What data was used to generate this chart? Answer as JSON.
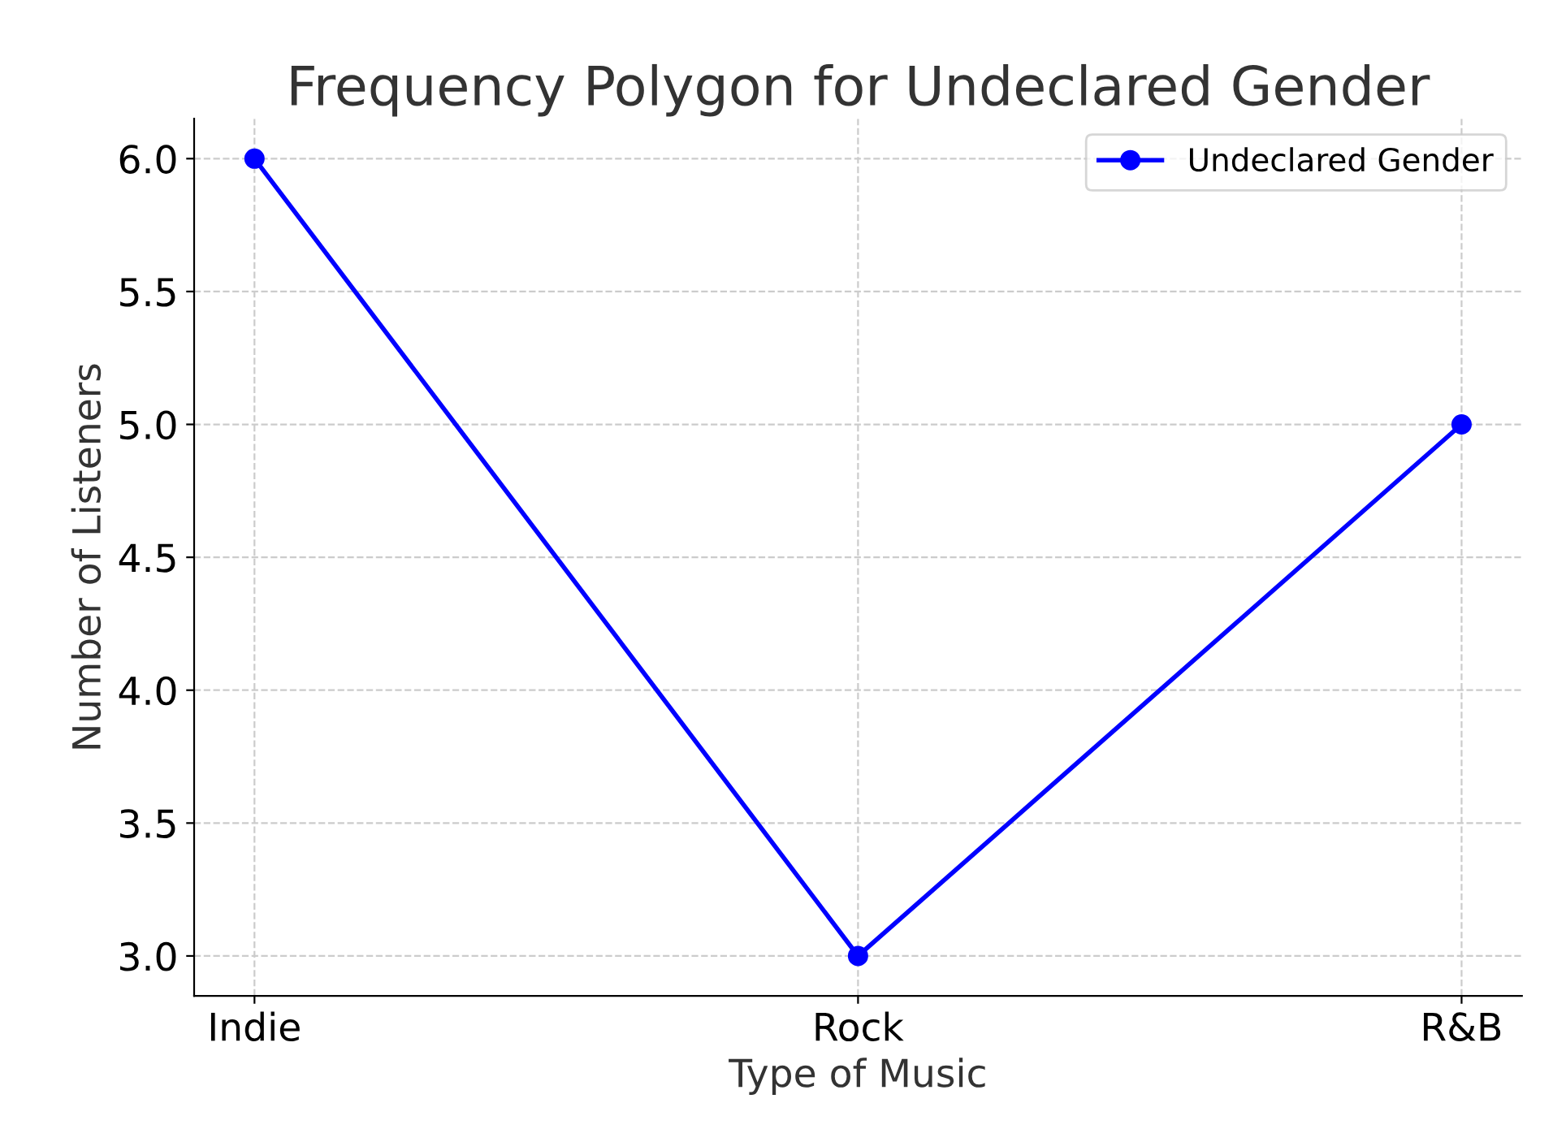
{
  "chart_data": {
    "type": "line",
    "title": "Frequency Polygon for Undeclared Gender",
    "xlabel": "Type of Music",
    "ylabel": "Number of Listeners",
    "categories": [
      "Indie",
      "Rock",
      "R&B"
    ],
    "series": [
      {
        "name": "Undeclared Gender",
        "color": "#0000ff",
        "values": [
          6,
          3,
          5
        ]
      }
    ],
    "ylim": [
      2.85,
      6.15
    ],
    "yticks": [
      {
        "value": 3,
        "label": "3.0"
      },
      3.5,
      {
        "value": 4,
        "label": "4.0"
      },
      4.5,
      {
        "value": 5,
        "label": "5.0"
      },
      5.5,
      {
        "value": 6,
        "label": "6.0"
      }
    ],
    "grid": true,
    "legend": "top right",
    "marker": "circle",
    "line_style": "solid"
  }
}
